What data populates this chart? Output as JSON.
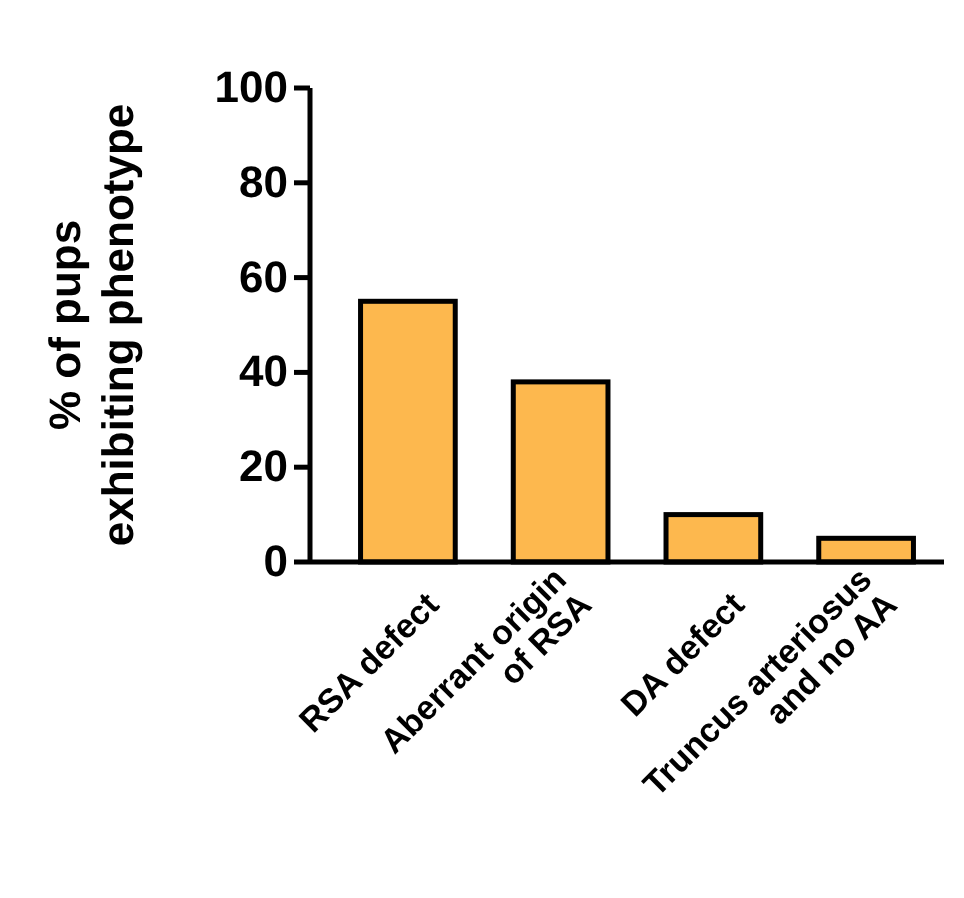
{
  "chart_data": {
    "type": "bar",
    "ylabel": "% of pups\nexhibiting phenotype",
    "categories": [
      "RSA defect",
      "Aberrant origin\nof RSA",
      "DA defect",
      "Truncus arteriosus\nand no AA"
    ],
    "values": [
      55,
      38,
      10,
      5
    ],
    "color": "#fdb84e",
    "ylim": [
      0,
      100
    ],
    "yticks": [
      0,
      20,
      40,
      60,
      80,
      100
    ],
    "grid": false
  }
}
